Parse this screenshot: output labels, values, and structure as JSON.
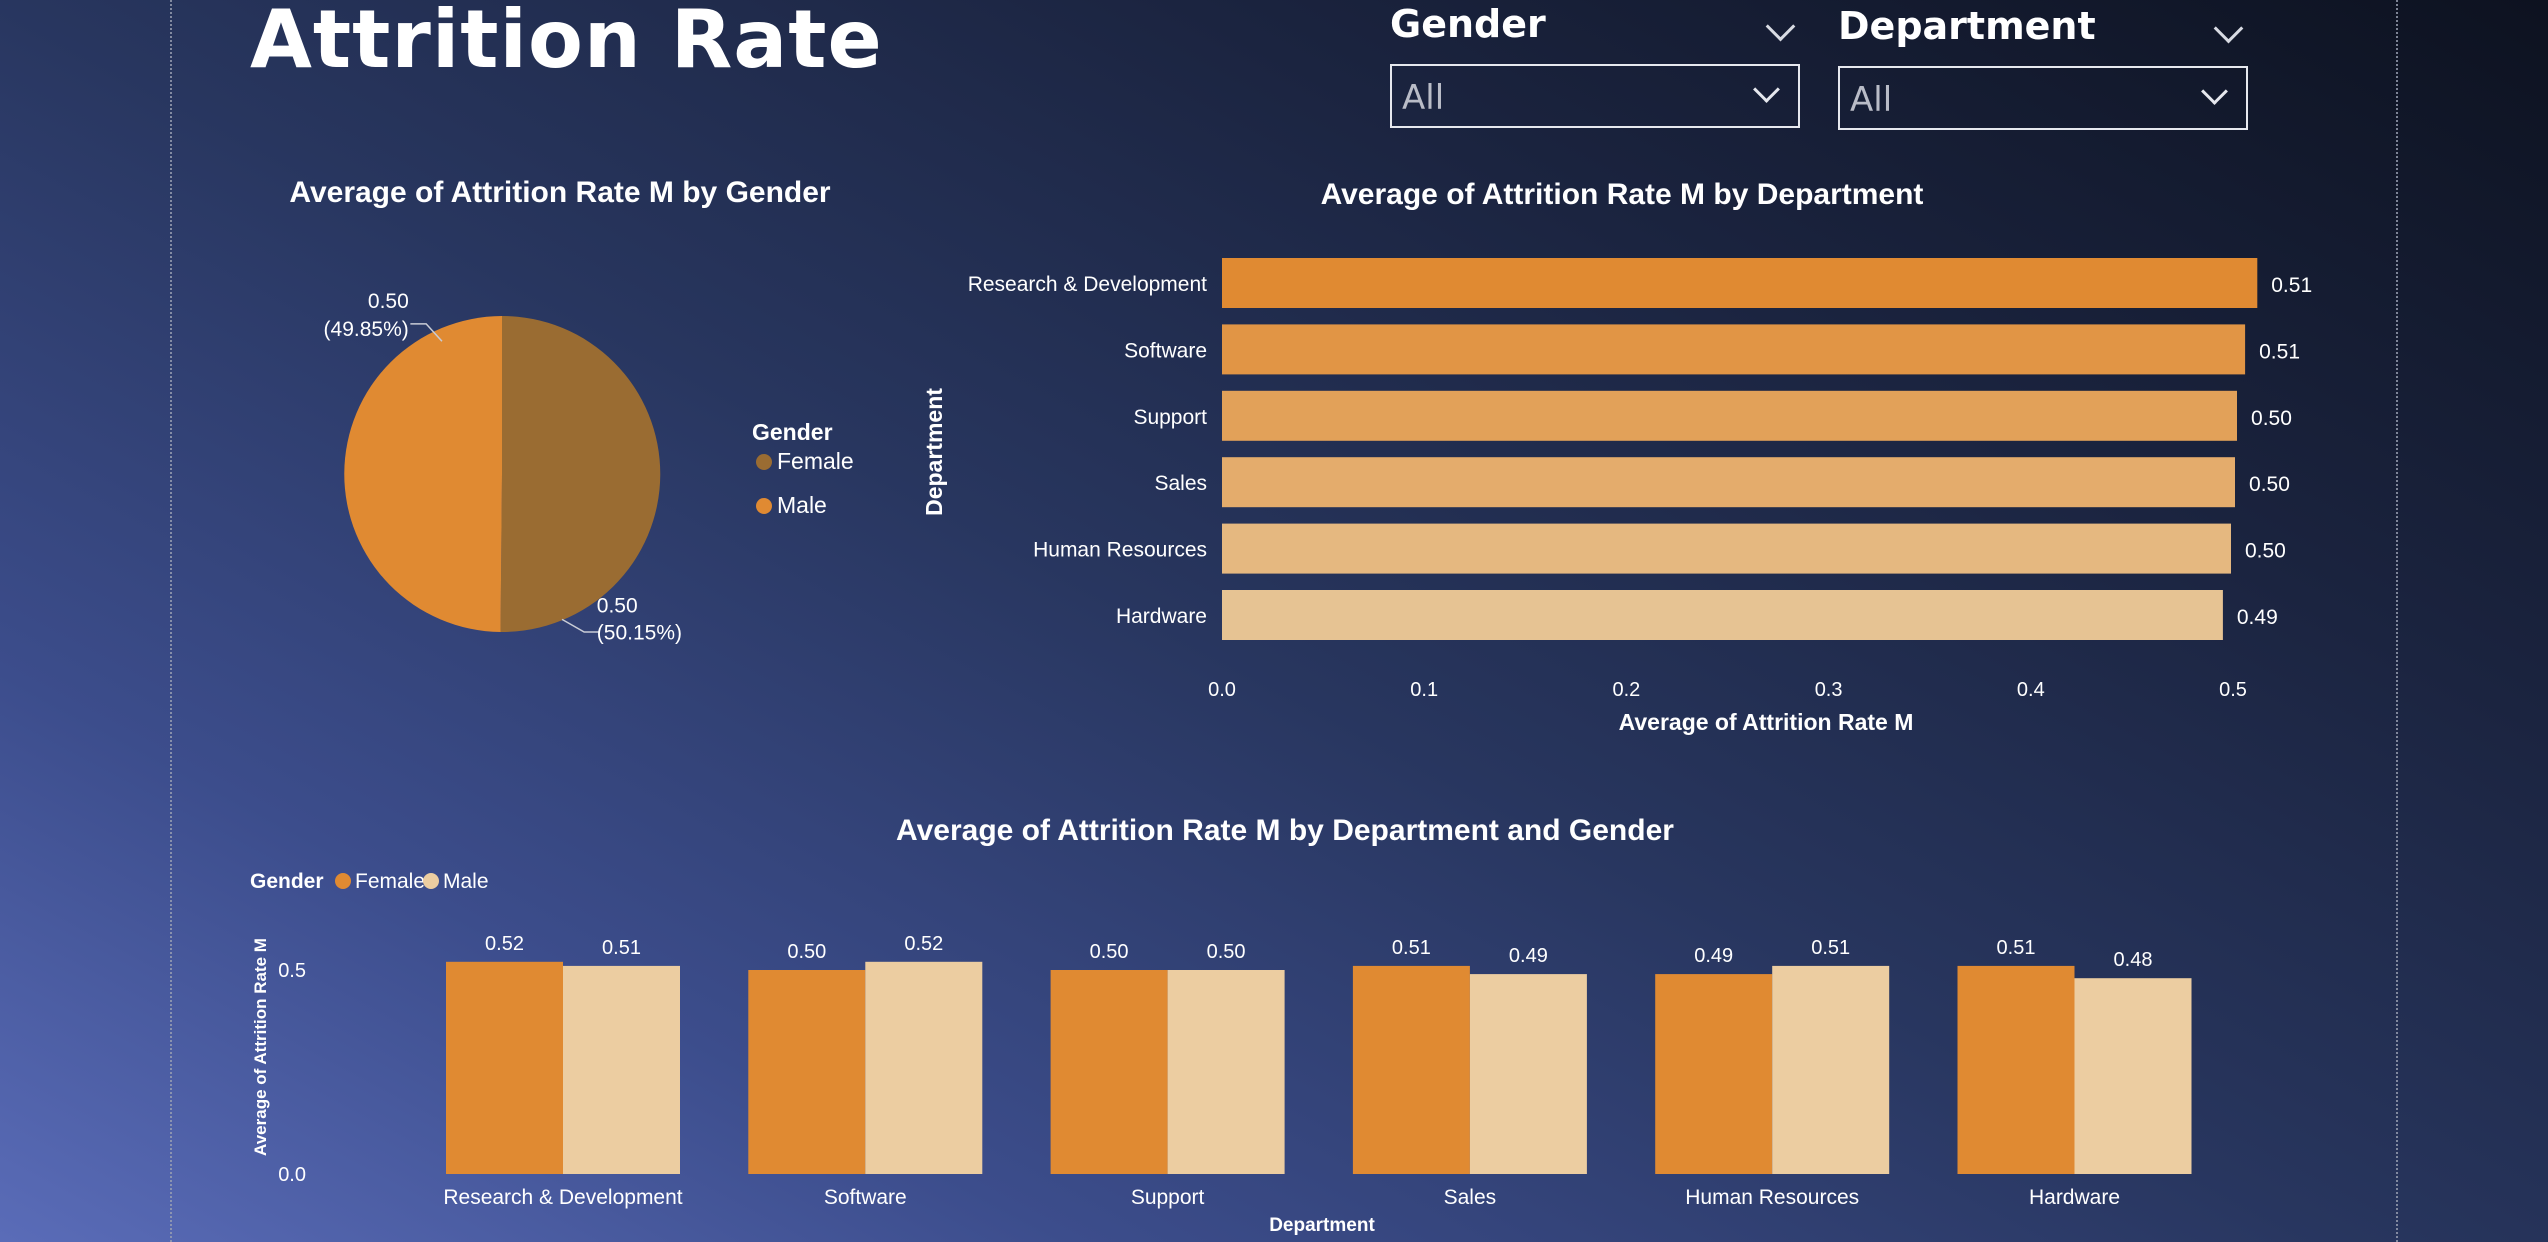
{
  "page": {
    "title": "Attrition Rate"
  },
  "slicers": [
    {
      "label": "Gender",
      "value": "All"
    },
    {
      "label": "Department",
      "value": "All"
    }
  ],
  "colors": {
    "female": "#9a6c32",
    "male": "#e08a32",
    "bar_dark": "#e08a32",
    "bar_light": "#e6c393",
    "col_female": "#e08a32",
    "col_male": "#eccda1"
  },
  "chart_data": [
    {
      "type": "pie",
      "title": "Average of Attrition Rate M by Gender",
      "legend_title": "Gender",
      "legend_position": "right",
      "slices": [
        {
          "name": "Female",
          "value": 0.5,
          "label": "0.50",
          "pct": "(50.15%)",
          "share": 50.15
        },
        {
          "name": "Male",
          "value": 0.5,
          "label": "0.50",
          "pct": "(49.85%)",
          "share": 49.85
        }
      ]
    },
    {
      "type": "bar",
      "orientation": "horizontal",
      "title": "Average of Attrition Rate M by Department",
      "xlabel": "Average of Attrition Rate M",
      "ylabel": "Department",
      "categories": [
        "Research & Development",
        "Software",
        "Support",
        "Sales",
        "Human Resources",
        "Hardware"
      ],
      "values": [
        0.512,
        0.506,
        0.502,
        0.501,
        0.499,
        0.495
      ],
      "value_labels": [
        "0.51",
        "0.51",
        "0.50",
        "0.50",
        "0.50",
        "0.49"
      ],
      "xticks": [
        "0.0",
        "0.1",
        "0.2",
        "0.3",
        "0.4",
        "0.5"
      ],
      "xlim": [
        0,
        0.5
      ]
    },
    {
      "type": "bar",
      "orientation": "vertical",
      "title": "Average of Attrition Rate M by Department and Gender",
      "xlabel": "Department",
      "ylabel": "Average of Attrition Rate M",
      "legend_title": "Gender",
      "legend_position": "top-left",
      "yticks": [
        "0.0",
        "0.5"
      ],
      "ylim": [
        0,
        0.5
      ],
      "categories": [
        "Research & Development",
        "Software",
        "Support",
        "Sales",
        "Human Resources",
        "Hardware"
      ],
      "series": [
        {
          "name": "Female",
          "values": [
            0.52,
            0.5,
            0.5,
            0.51,
            0.49,
            0.51
          ],
          "labels": [
            "0.52",
            "0.50",
            "0.50",
            "0.51",
            "0.49",
            "0.51"
          ]
        },
        {
          "name": "Male",
          "values": [
            0.51,
            0.52,
            0.5,
            0.49,
            0.51,
            0.48
          ],
          "labels": [
            "0.51",
            "0.52",
            "0.50",
            "0.49",
            "0.51",
            "0.48"
          ]
        }
      ]
    }
  ]
}
